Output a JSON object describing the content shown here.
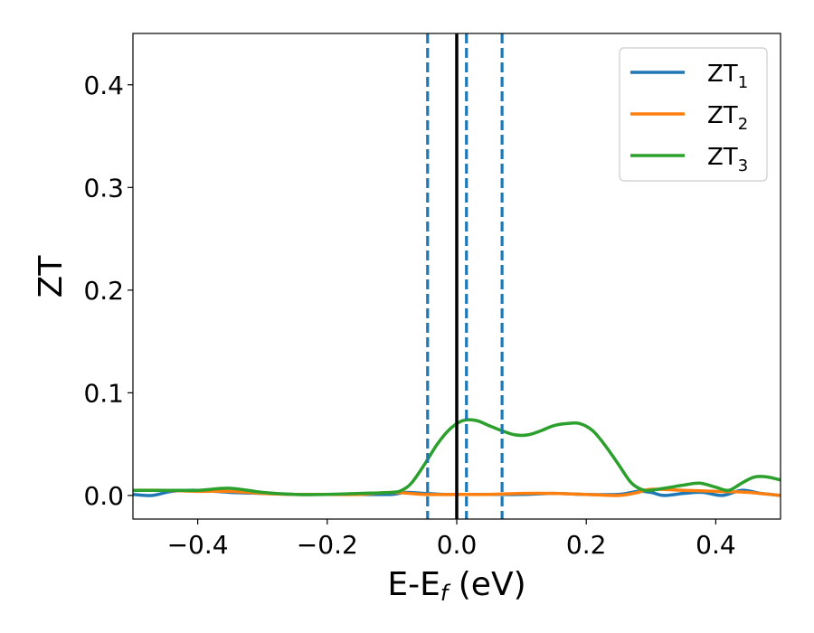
{
  "chart_data": {
    "type": "line",
    "title": "",
    "xlabel": "E-E",
    "xlabel_sub": "f",
    "xlabel_unit": " (eV)",
    "ylabel": "ZT",
    "xlim": [
      -0.5,
      0.5
    ],
    "ylim": [
      -0.023,
      0.45
    ],
    "xticks": [
      -0.4,
      -0.2,
      0.0,
      0.2,
      0.4
    ],
    "xtick_labels": [
      "−0.4",
      "−0.2",
      "0.0",
      "0.2",
      "0.4"
    ],
    "yticks": [
      0.0,
      0.1,
      0.2,
      0.3,
      0.4
    ],
    "ytick_labels": [
      "0.0",
      "0.1",
      "0.2",
      "0.3",
      "0.4"
    ],
    "grid": false,
    "legend_position": "top-right",
    "colors": {
      "ZT1": "#1f77b4",
      "ZT2": "#ff7f0e",
      "ZT3": "#2ca02c",
      "ef_line": "#000000",
      "dashed_lines": "#1f77b4"
    },
    "vlines": {
      "solid": [
        0.0
      ],
      "dashed": [
        -0.045,
        0.015,
        0.07
      ]
    },
    "series": [
      {
        "name": "ZT1",
        "label_base": "ZT",
        "label_sub": "1",
        "x": [
          -0.5,
          -0.47,
          -0.44,
          -0.4,
          -0.35,
          -0.3,
          -0.25,
          -0.2,
          -0.15,
          -0.1,
          -0.08,
          -0.05,
          -0.02,
          0.0,
          0.05,
          0.1,
          0.15,
          0.2,
          0.25,
          0.28,
          0.3,
          0.32,
          0.35,
          0.38,
          0.41,
          0.44,
          0.47,
          0.5
        ],
        "y": [
          0.001,
          0.0,
          0.004,
          0.005,
          0.003,
          0.002,
          0.001,
          0.001,
          0.001,
          0.001,
          0.003,
          0.002,
          0.001,
          0.001,
          0.001,
          0.001,
          0.002,
          0.001,
          0.001,
          0.004,
          0.003,
          0.0,
          0.002,
          0.003,
          0.0,
          0.005,
          0.002,
          0.0
        ]
      },
      {
        "name": "ZT2",
        "label_base": "ZT",
        "label_sub": "2",
        "x": [
          -0.5,
          -0.45,
          -0.4,
          -0.35,
          -0.3,
          -0.25,
          -0.2,
          -0.15,
          -0.1,
          -0.05,
          0.0,
          0.05,
          0.1,
          0.15,
          0.2,
          0.25,
          0.28,
          0.3,
          0.35,
          0.4,
          0.45,
          0.5
        ],
        "y": [
          0.005,
          0.005,
          0.004,
          0.004,
          0.002,
          0.001,
          0.001,
          0.001,
          0.003,
          0.001,
          0.001,
          0.001,
          0.002,
          0.002,
          0.001,
          0.0,
          0.003,
          0.006,
          0.005,
          0.004,
          0.003,
          0.0
        ]
      },
      {
        "name": "ZT3",
        "label_base": "ZT",
        "label_sub": "3",
        "x": [
          -0.5,
          -0.45,
          -0.4,
          -0.35,
          -0.3,
          -0.25,
          -0.2,
          -0.15,
          -0.1,
          -0.085,
          -0.07,
          -0.05,
          -0.03,
          -0.01,
          0.01,
          0.03,
          0.05,
          0.07,
          0.09,
          0.11,
          0.13,
          0.15,
          0.17,
          0.19,
          0.21,
          0.23,
          0.25,
          0.27,
          0.29,
          0.31,
          0.33,
          0.35,
          0.375,
          0.4,
          0.42,
          0.44,
          0.46,
          0.48,
          0.5
        ],
        "y": [
          0.005,
          0.005,
          0.005,
          0.007,
          0.003,
          0.001,
          0.001,
          0.002,
          0.003,
          0.005,
          0.012,
          0.03,
          0.05,
          0.065,
          0.073,
          0.073,
          0.068,
          0.063,
          0.059,
          0.059,
          0.063,
          0.068,
          0.07,
          0.07,
          0.063,
          0.048,
          0.03,
          0.012,
          0.005,
          0.006,
          0.008,
          0.01,
          0.012,
          0.008,
          0.005,
          0.012,
          0.018,
          0.018,
          0.015
        ]
      }
    ]
  }
}
